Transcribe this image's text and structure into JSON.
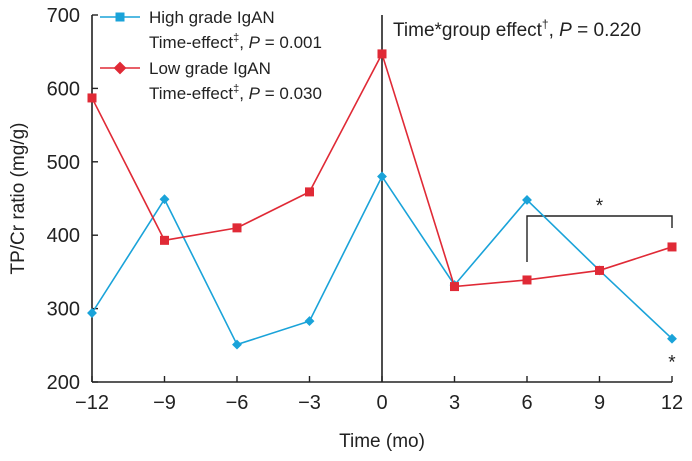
{
  "chart_data": {
    "type": "line",
    "xlabel": "Time (mo)",
    "ylabel": "TP/Cr ratio (mg/g)",
    "x": [
      -12,
      -9,
      -6,
      -3,
      0,
      3,
      6,
      9,
      12
    ],
    "x_tick_labels": [
      "−12",
      "−9",
      "−6",
      "−3",
      "0",
      "3",
      "6",
      "9",
      "12"
    ],
    "xlim": [
      -12,
      12
    ],
    "ylim": [
      200,
      700
    ],
    "y_ticks": [
      200,
      300,
      400,
      500,
      600,
      700
    ],
    "grid": false,
    "legend_position": "top-left",
    "series": [
      {
        "name": "High grade IgAN",
        "stat_prefix": "Time-effect",
        "stat_mark": "‡",
        "stat_sep": ", ",
        "stat_p": "P",
        "stat_value": " = 0.001",
        "color": "#1aa3d9",
        "marker": "diamond",
        "values": [
          294,
          449,
          251,
          283,
          480,
          332,
          448,
          352,
          259
        ]
      },
      {
        "name": "Low grade IgAN",
        "stat_prefix": "Time-effect",
        "stat_mark": "‡",
        "stat_sep": ", ",
        "stat_p": "P",
        "stat_value": " = 0.030",
        "color": "#e02a36",
        "marker": "square",
        "values": [
          587,
          393,
          410,
          459,
          647,
          330,
          339,
          352,
          384
        ]
      }
    ],
    "annotations": {
      "vertical_line_x": 0,
      "group_effect_prefix": "Time*group effect",
      "group_effect_mark": "†",
      "group_effect_sep": ", ",
      "group_effect_p": "P",
      "group_effect_value": " = 0.220",
      "bracket_star": "*",
      "point_star": "*"
    }
  }
}
